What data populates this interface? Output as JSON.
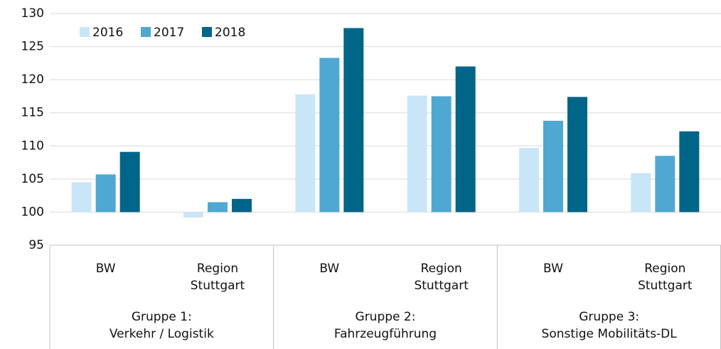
{
  "chart_data": {
    "type": "bar",
    "categories": [
      "BW",
      "Region\nStuttgart",
      "BW",
      "Region\nStuttgart",
      "BW",
      "Region\nStuttgart"
    ],
    "groups": [
      "Gruppe 1:\nVerkehr / Logistik",
      "Gruppe 2:\nFahrzeugführung",
      "Gruppe 3:\nSonstige Mobilitäts-DL"
    ],
    "series": [
      {
        "name": "2016",
        "color": "#c9e6f8",
        "values": [
          104.5,
          99.2,
          117.8,
          117.6,
          109.7,
          105.9
        ]
      },
      {
        "name": "2017",
        "color": "#4fa8d2",
        "values": [
          105.7,
          101.5,
          123.3,
          117.5,
          113.8,
          108.5
        ]
      },
      {
        "name": "2018",
        "color": "#006589",
        "values": [
          109.1,
          102.0,
          127.8,
          122.0,
          117.4,
          112.2
        ]
      }
    ],
    "base": 100,
    "ylim": [
      95,
      130
    ],
    "yticks": [
      95,
      100,
      105,
      110,
      115,
      120,
      125,
      130
    ],
    "grid": true,
    "legend": "top-left"
  }
}
